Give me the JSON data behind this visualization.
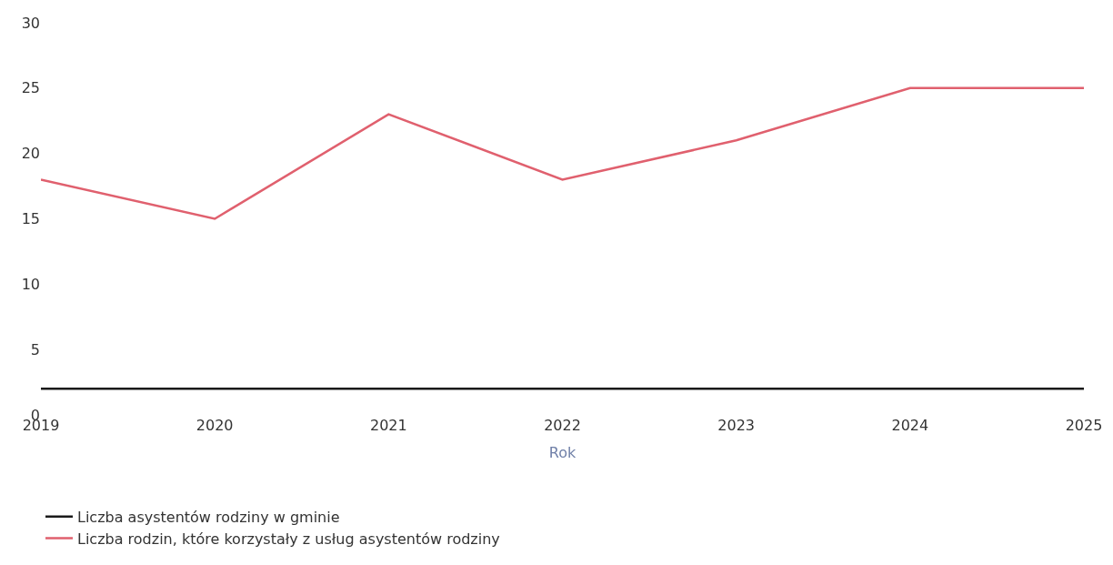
{
  "chart_data": {
    "type": "line",
    "xlabel": "Rok",
    "x": [
      2019,
      2020,
      2021,
      2022,
      2023,
      2024,
      2025
    ],
    "series": [
      {
        "name": "Liczba asystentów rodziny w gminie",
        "color": "#1a1a1a",
        "values": [
          2,
          2,
          2,
          2,
          2,
          2,
          2
        ]
      },
      {
        "name": "Liczba rodzin, które korzystały z usług asystentów rodziny",
        "color": "#e0606e",
        "values": [
          18,
          15,
          23,
          18,
          21,
          25,
          25
        ]
      }
    ],
    "xlim": [
      2019,
      2025
    ],
    "xticks": [
      2019,
      2020,
      2021,
      2022,
      2023,
      2024,
      2025
    ],
    "ylim": [
      0,
      30
    ],
    "yticks": [
      0,
      5,
      10,
      15,
      20,
      25,
      30
    ],
    "legend": "bottom",
    "marker": "none",
    "line_style": "solid"
  }
}
